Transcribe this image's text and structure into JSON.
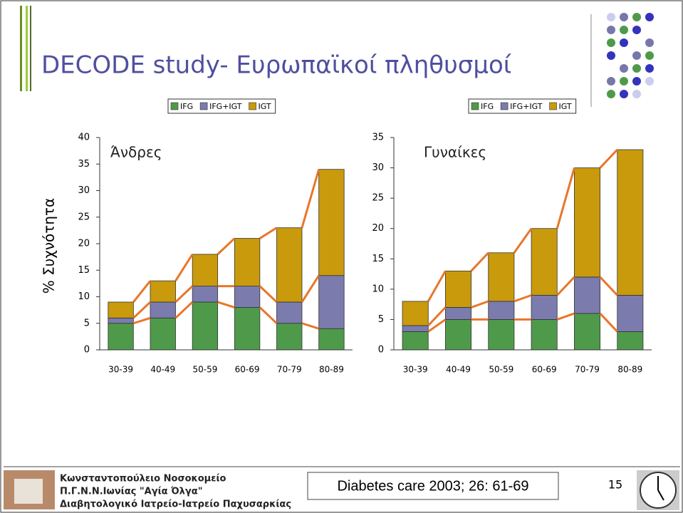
{
  "title": "DECODE study- Ευρωπαϊκοί πληθυσμοί",
  "chart_data": [
    {
      "type": "bar",
      "stacked": true,
      "title": "Άνδρες",
      "ylabel": "% Συχνότητα",
      "categories": [
        "30-39",
        "40-49",
        "50-59",
        "60-69",
        "70-79",
        "80-89"
      ],
      "series": [
        {
          "name": "IFG",
          "color": "#4f9a4a",
          "values": [
            5,
            6,
            9,
            8,
            5,
            4
          ]
        },
        {
          "name": "IFG+IGT",
          "color": "#7b7bad",
          "values": [
            1,
            3,
            3,
            4,
            4,
            10
          ]
        },
        {
          "name": "IGT",
          "color": "#c99a0c",
          "values": [
            3,
            4,
            6,
            9,
            14,
            20
          ]
        }
      ],
      "ylim": [
        0,
        40
      ],
      "yticks": [
        0,
        5,
        10,
        15,
        20,
        25,
        30,
        35,
        40
      ],
      "line_color": "#e8762a"
    },
    {
      "type": "bar",
      "stacked": true,
      "title": "Γυναίκες",
      "categories": [
        "30-39",
        "40-49",
        "50-59",
        "60-69",
        "70-79",
        "80-89"
      ],
      "series": [
        {
          "name": "IFG",
          "color": "#4f9a4a",
          "values": [
            3,
            5,
            5,
            5,
            6,
            3
          ]
        },
        {
          "name": "IFG+IGT",
          "color": "#7b7bad",
          "values": [
            1,
            2,
            3,
            4,
            6,
            6
          ]
        },
        {
          "name": "IGT",
          "color": "#c99a0c",
          "values": [
            4,
            6,
            8,
            11,
            18,
            24
          ]
        }
      ],
      "ylim": [
        0,
        35
      ],
      "yticks": [
        0,
        5,
        10,
        15,
        20,
        25,
        30,
        35
      ],
      "line_color": "#e8762a"
    }
  ],
  "footer": {
    "institution": [
      "Κωνσταντοπούλειο Νοσοκομείο",
      "Π.Γ.Ν.Ν.Ιωνίας \"Αγία Όλγα\"",
      "Διαβητολογικό Ιατρείο-Ιατρείο Παχυσαρκίας"
    ],
    "citation": "Diabetes care 2003; 26: 61-69",
    "page": "15"
  }
}
